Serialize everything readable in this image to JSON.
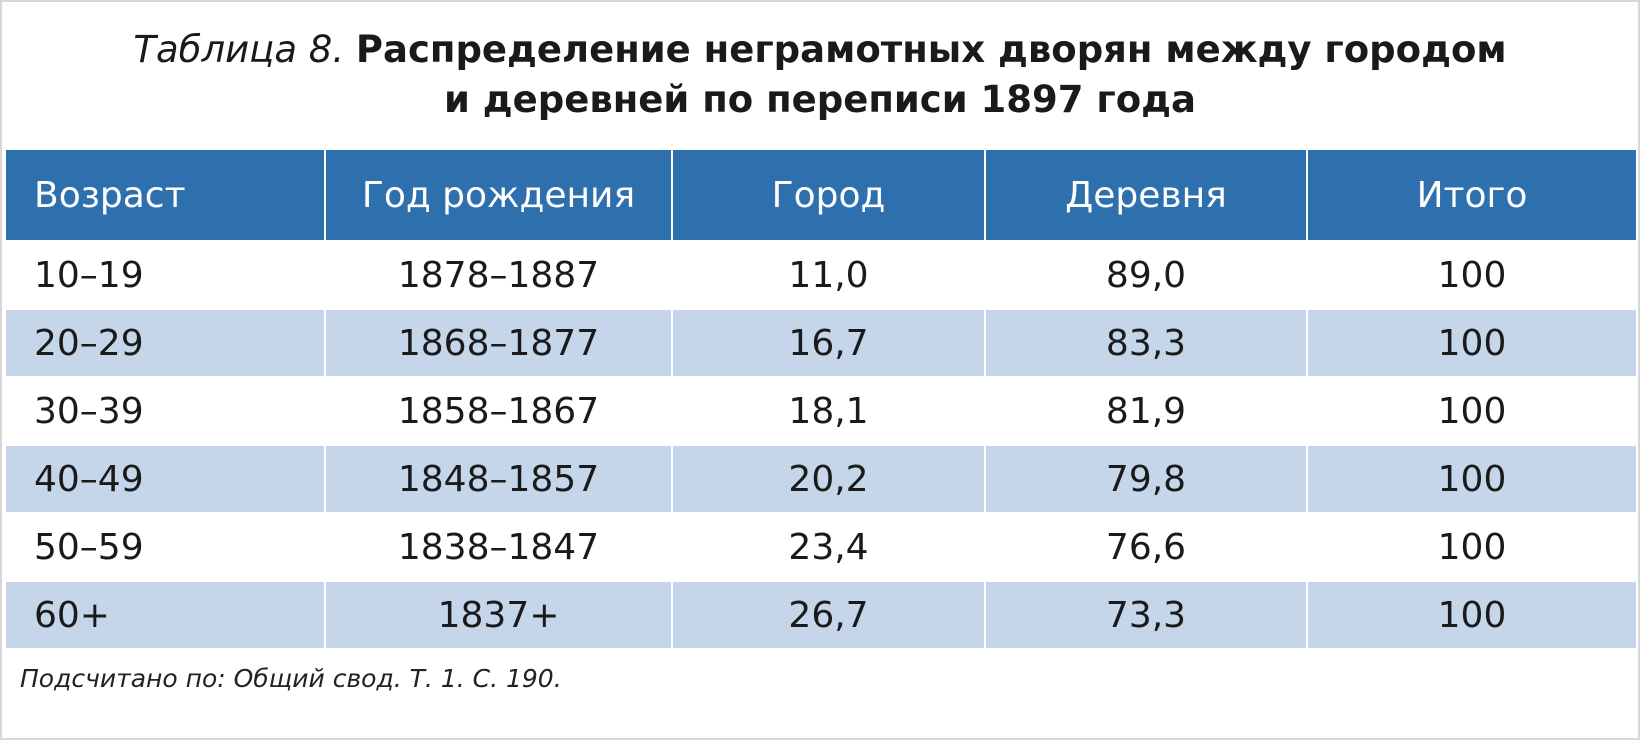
{
  "title": {
    "label": "Таблица 8.",
    "lines": [
      "Распределение неграмотных дворян между городом",
      "и деревней по переписи 1897 года"
    ]
  },
  "table": {
    "header": [
      "Возраст",
      "Год рождения",
      "Город",
      "Деревня",
      "Итого"
    ],
    "rows": [
      [
        "10–19",
        "1878–1887",
        "11,0",
        "89,0",
        "100"
      ],
      [
        "20–29",
        "1868–1877",
        "16,7",
        "83,3",
        "100"
      ],
      [
        "30–39",
        "1858–1867",
        "18,1",
        "81,9",
        "100"
      ],
      [
        "40–49",
        "1848–1857",
        "20,2",
        "79,8",
        "100"
      ],
      [
        "50–59",
        "1838–1847",
        "23,4",
        "76,6",
        "100"
      ],
      [
        "60+",
        "1837+",
        "26,7",
        "73,3",
        "100"
      ]
    ]
  },
  "footnote": "Подсчитано по: Общий свод. Т. 1. С. 190."
}
